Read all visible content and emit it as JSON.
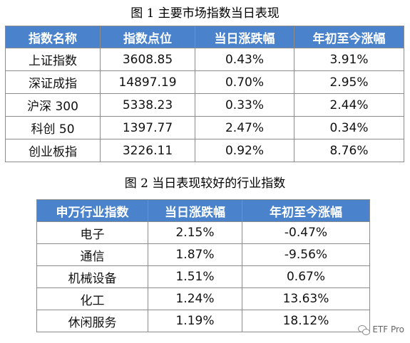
{
  "figure1": {
    "caption": "图 1  主要市场指数当日表现",
    "headers": [
      "指数名称",
      "指数点位",
      "当日涨跌幅",
      "年初至今涨幅"
    ],
    "rows": [
      [
        "上证指数",
        "3608.85",
        "0.43%",
        "3.91%"
      ],
      [
        "深证成指",
        "14897.19",
        "0.70%",
        "2.95%"
      ],
      [
        "沪深 300",
        "5338.23",
        "0.33%",
        "2.44%"
      ],
      [
        "科创 50",
        "1397.77",
        "2.47%",
        "0.34%"
      ],
      [
        "创业板指",
        "3226.11",
        "0.92%",
        "8.76%"
      ]
    ]
  },
  "figure2": {
    "caption": "图 2  当日表现较好的行业指数",
    "headers": [
      "申万行业指数",
      "当日涨跌幅",
      "年初至今涨幅"
    ],
    "rows": [
      [
        "电子",
        "2.15%",
        "-0.47%"
      ],
      [
        "通信",
        "1.87%",
        "-9.56%"
      ],
      [
        "机械设备",
        "1.51%",
        "0.67%"
      ],
      [
        "化工",
        "1.24%",
        "13.63%"
      ],
      [
        "休闲服务",
        "1.19%",
        "18.12%"
      ]
    ]
  },
  "watermark": {
    "text": "ETF Pro",
    "icon": "wechat-icon"
  },
  "colors": {
    "header_bg": "#4a82cc",
    "header_text": "#ffffff",
    "border": "#8c8c8c"
  }
}
